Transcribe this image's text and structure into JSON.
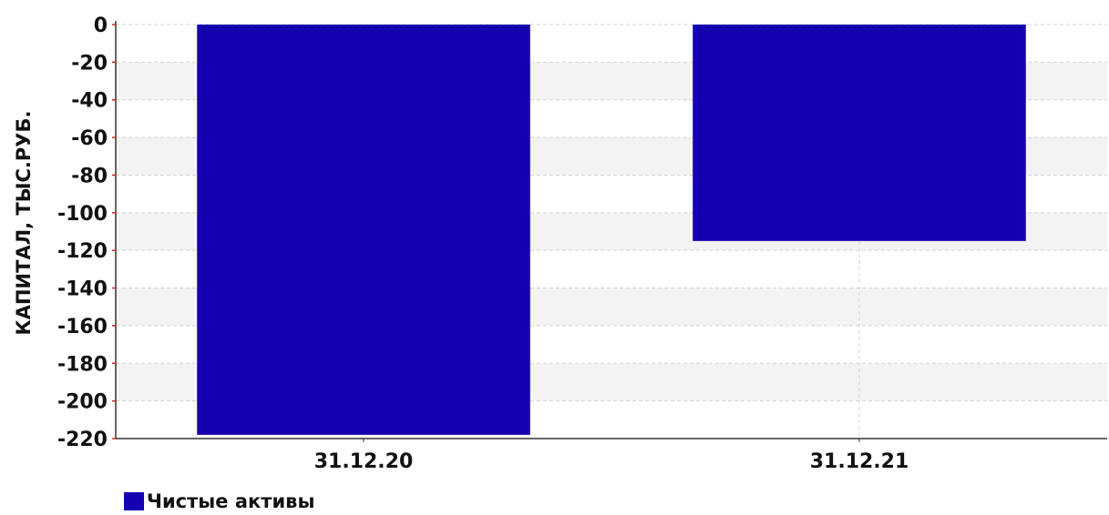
{
  "chart_data": {
    "type": "bar",
    "categories": [
      "31.12.20",
      "31.12.21"
    ],
    "series": [
      {
        "name": "Чистые активы",
        "values": [
          -218,
          -115
        ],
        "color": "#1500B0"
      }
    ],
    "xlabel": "",
    "ylabel": "КАПИТАЛ, ТЫС.РУБ.",
    "ylim": [
      -220,
      0
    ],
    "yticks": [
      0,
      -20,
      -40,
      -60,
      -80,
      -100,
      -120,
      -140,
      -160,
      -180,
      -200,
      -220
    ],
    "grid": true,
    "legend": "bottom-left"
  }
}
